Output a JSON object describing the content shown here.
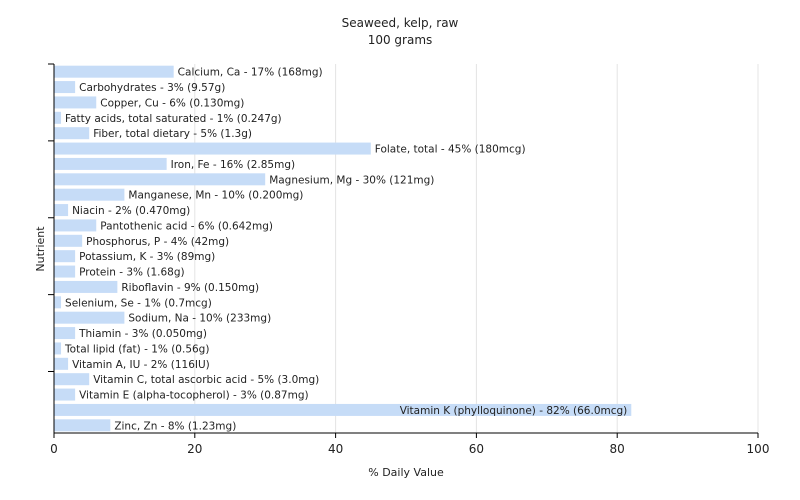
{
  "chart_data": {
    "type": "bar",
    "orientation": "horizontal",
    "title": "Seaweed, kelp, raw",
    "subtitle": "100 grams",
    "xlabel": "% Daily Value",
    "ylabel": "Nutrient",
    "xlim": [
      0,
      100
    ],
    "xticks": [
      0,
      20,
      40,
      60,
      80,
      100
    ],
    "grid": true,
    "bar_color": "#c6dcf7",
    "categories": [
      "Calcium, Ca",
      "Carbohydrates",
      "Copper, Cu",
      "Fatty acids, total saturated",
      "Fiber, total dietary",
      "Folate, total",
      "Iron, Fe",
      "Magnesium, Mg",
      "Manganese, Mn",
      "Niacin",
      "Pantothenic acid",
      "Phosphorus, P",
      "Potassium, K",
      "Protein",
      "Riboflavin",
      "Selenium, Se",
      "Sodium, Na",
      "Thiamin",
      "Total lipid (fat)",
      "Vitamin A, IU",
      "Vitamin C, total ascorbic acid",
      "Vitamin E (alpha-tocopherol)",
      "Vitamin K (phylloquinone)",
      "Zinc, Zn"
    ],
    "values": [
      17,
      3,
      6,
      1,
      5,
      45,
      16,
      30,
      10,
      2,
      6,
      4,
      3,
      3,
      9,
      1,
      10,
      3,
      1,
      2,
      5,
      3,
      82,
      8
    ],
    "labels": [
      "Calcium, Ca - 17% (168mg)",
      "Carbohydrates - 3% (9.57g)",
      "Copper, Cu - 6% (0.130mg)",
      "Fatty acids, total saturated - 1% (0.247g)",
      "Fiber, total dietary - 5% (1.3g)",
      "Folate, total - 45% (180mcg)",
      "Iron, Fe - 16% (2.85mg)",
      "Magnesium, Mg - 30% (121mg)",
      "Manganese, Mn - 10% (0.200mg)",
      "Niacin - 2% (0.470mg)",
      "Pantothenic acid - 6% (0.642mg)",
      "Phosphorus, P - 4% (42mg)",
      "Potassium, K - 3% (89mg)",
      "Protein - 3% (1.68g)",
      "Riboflavin - 9% (0.150mg)",
      "Selenium, Se - 1% (0.7mcg)",
      "Sodium, Na - 10% (233mg)",
      "Thiamin - 3% (0.050mg)",
      "Total lipid (fat) - 1% (0.56g)",
      "Vitamin A, IU - 2% (116IU)",
      "Vitamin C, total ascorbic acid - 5% (3.0mg)",
      "Vitamin E (alpha-tocopherol) - 3% (0.87mg)",
      "Vitamin K (phylloquinone) - 82% (66.0mcg)",
      "Zinc, Zn - 8% (1.23mg)"
    ]
  }
}
